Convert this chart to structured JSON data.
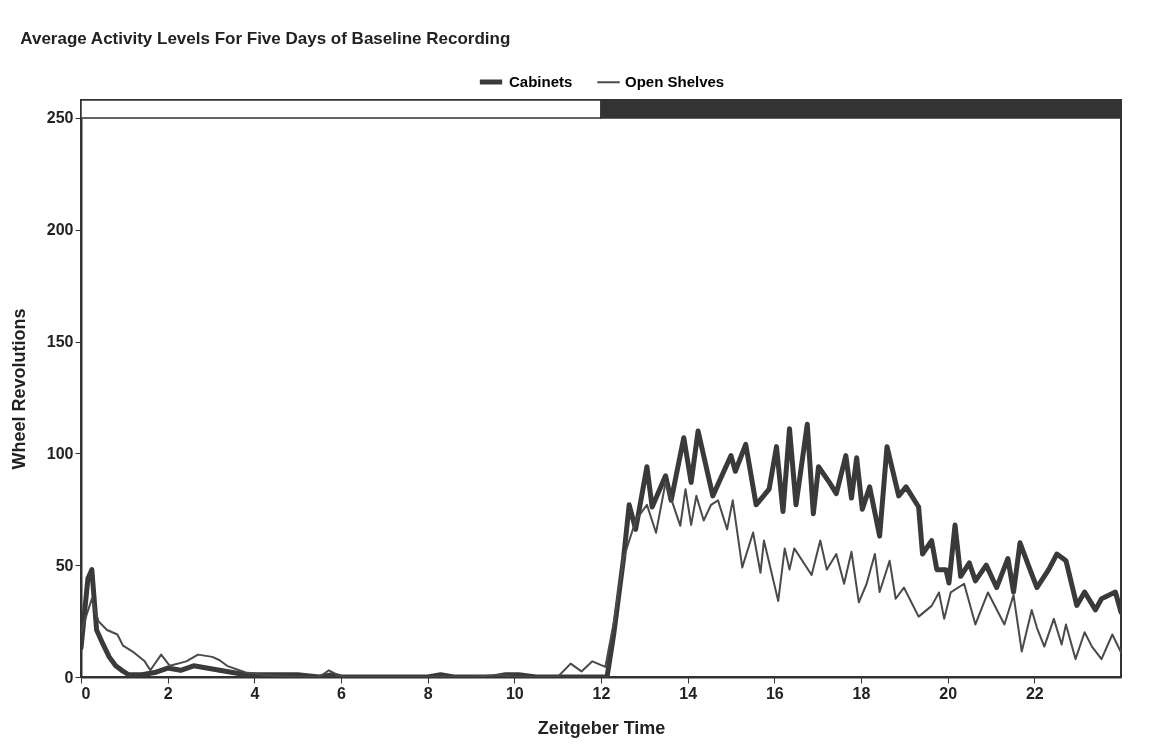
{
  "chart_data": {
    "type": "line",
    "title": "Average Activity Levels For Five Days of Baseline Recording",
    "xlabel": "Zeitgeber Time",
    "ylabel": "Wheel Revolutions",
    "xlim": [
      0,
      24
    ],
    "ylim": [
      0,
      258
    ],
    "xticks": [
      0,
      2,
      4,
      6,
      8,
      10,
      12,
      14,
      16,
      18,
      20,
      22
    ],
    "yticks": [
      0,
      50,
      100,
      150,
      200,
      250
    ],
    "grid": false,
    "legend": "top",
    "marker": "none",
    "line_style": "solid",
    "series": [
      {
        "name": "Cabinets",
        "color": "#3a3a3a",
        "x": [
          0,
          0.16,
          0.25,
          0.36,
          0.5,
          0.65,
          0.8,
          0.94,
          1.1,
          1.4,
          1.7,
          2.0,
          2.3,
          2.6,
          2.9,
          3.2,
          3.5,
          3.8,
          4.2,
          4.6,
          5.0,
          5.5,
          5.8,
          6.0,
          7.0,
          8.0,
          8.3,
          8.6,
          9.5,
          9.8,
          10.1,
          10.5,
          11.0,
          11.5,
          11.9,
          12.14,
          12.3,
          12.52,
          12.65,
          12.8,
          13.06,
          13.18,
          13.49,
          13.62,
          13.91,
          14.08,
          14.24,
          14.58,
          15.0,
          15.1,
          15.34,
          15.58,
          15.88,
          16.05,
          16.2,
          16.35,
          16.5,
          16.76,
          16.9,
          17.02,
          17.27,
          17.43,
          17.65,
          17.78,
          17.9,
          18.03,
          18.2,
          18.43,
          18.6,
          18.87,
          19.04,
          19.33,
          19.42,
          19.63,
          19.75,
          19.96,
          20.03,
          20.17,
          20.3,
          20.5,
          20.64,
          20.89,
          21.13,
          21.39,
          21.52,
          21.67,
          21.9,
          22.06,
          22.33,
          22.52,
          22.73,
          22.98,
          23.16,
          23.41,
          23.55,
          23.87,
          24.0
        ],
        "values": [
          13,
          44,
          48,
          21,
          15,
          9,
          5,
          3,
          1,
          1,
          2,
          4,
          3,
          5,
          4,
          3,
          2,
          1,
          1,
          1,
          1,
          0,
          1,
          0,
          0,
          0,
          1,
          0,
          0,
          1,
          1,
          0,
          0,
          0,
          0,
          0,
          20,
          53,
          77,
          66,
          94,
          76,
          90,
          79,
          107,
          87,
          110,
          81,
          99,
          92,
          104,
          77,
          84,
          103,
          74,
          111,
          77,
          113,
          73,
          94,
          87,
          82,
          99,
          80,
          98,
          75,
          85,
          63,
          103,
          81,
          85,
          76,
          55,
          61,
          48,
          48,
          42,
          68,
          45,
          51,
          43,
          50,
          40,
          53,
          38,
          60,
          48,
          40,
          48,
          55,
          52,
          32,
          38,
          30,
          35,
          38,
          29
        ]
      },
      {
        "name": "Open Shelves",
        "color": "#4a4a4a",
        "x": [
          0,
          0.25,
          0.4,
          0.6,
          0.84,
          0.97,
          1.22,
          1.47,
          1.6,
          1.85,
          2.05,
          2.43,
          2.7,
          3.03,
          3.2,
          3.37,
          3.8,
          4.2,
          4.8,
          5.5,
          5.72,
          6.0,
          7.0,
          8.0,
          8.6,
          9.0,
          9.7,
          10.0,
          10.5,
          11.0,
          11.3,
          11.55,
          11.8,
          12.1,
          12.3,
          12.52,
          12.8,
          13.06,
          13.27,
          13.49,
          13.83,
          13.95,
          14.08,
          14.2,
          14.37,
          14.54,
          14.7,
          14.91,
          15.04,
          15.26,
          15.51,
          15.68,
          15.76,
          16.09,
          16.24,
          16.35,
          16.46,
          16.86,
          17.06,
          17.21,
          17.43,
          17.61,
          17.78,
          17.95,
          18.13,
          18.32,
          18.43,
          18.66,
          18.8,
          18.99,
          19.33,
          19.63,
          19.8,
          19.92,
          20.07,
          20.38,
          20.64,
          20.93,
          21.31,
          21.52,
          21.71,
          21.94,
          22.06,
          22.23,
          22.45,
          22.63,
          22.73,
          22.95,
          23.16,
          23.33,
          23.55,
          23.8,
          24.0
        ],
        "values": [
          20,
          35,
          25,
          21,
          19,
          14,
          11,
          7,
          3,
          10,
          5,
          7,
          10,
          9,
          7.5,
          5,
          2,
          1,
          0,
          0,
          3,
          0,
          0,
          0,
          0,
          0,
          1,
          0,
          0,
          0,
          6,
          2.5,
          7,
          4.5,
          25,
          53,
          70,
          77,
          64.5,
          87,
          67.6,
          84,
          68,
          81,
          70,
          77,
          79,
          66,
          79,
          49,
          64.6,
          46.6,
          61,
          34,
          57.5,
          48,
          57.5,
          45.6,
          61,
          48,
          55,
          41.7,
          56,
          33.4,
          41.7,
          55,
          38,
          52,
          35,
          40,
          27,
          31.8,
          37.8,
          26,
          37.8,
          41.7,
          23.5,
          37.8,
          23.5,
          36.6,
          11.4,
          30,
          22,
          13.6,
          26,
          14.5,
          23.5,
          8,
          20,
          13.6,
          8,
          19,
          11
        ]
      }
    ]
  }
}
